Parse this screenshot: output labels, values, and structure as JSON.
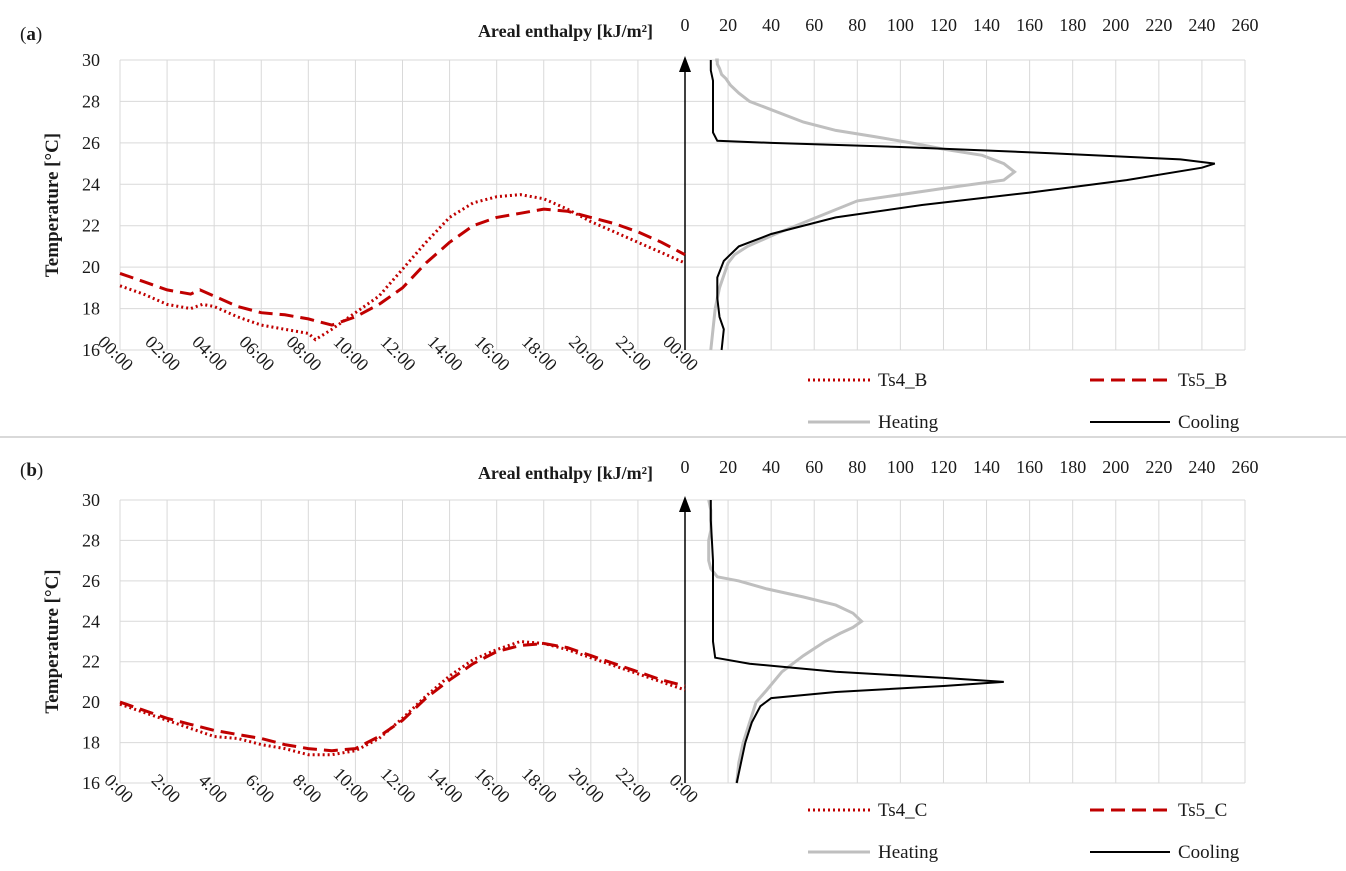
{
  "colors": {
    "ts4": "#c00000",
    "ts5": "#c00000",
    "heating": "#bfbfbf",
    "cooling": "#000000",
    "grid": "#d9d9d9"
  },
  "chart_data": [
    {
      "type": "line",
      "panel_label": "(a)",
      "ylabel": "Temperature [°C]",
      "ylim": [
        16,
        30
      ],
      "yticks": [
        "30",
        "28",
        "26",
        "24",
        "22",
        "20",
        "18",
        "16"
      ],
      "xlabel": "",
      "xticks": [
        "00:00",
        "02:00",
        "04:00",
        "06:00",
        "08:00",
        "10:00",
        "12:00",
        "14:00",
        "16:00",
        "18:00",
        "20:00",
        "22:00",
        "00:00"
      ],
      "grid": true,
      "series": [
        {
          "name": "Ts4_B",
          "style": "dotted",
          "x": [
            0,
            1,
            2,
            3,
            3.5,
            4,
            5,
            6,
            7,
            8,
            8.3,
            9,
            10,
            11,
            12,
            13,
            14,
            15,
            16,
            17,
            18,
            19,
            20,
            21,
            22,
            23,
            24
          ],
          "y": [
            19.1,
            18.7,
            18.2,
            18.0,
            18.2,
            18.1,
            17.6,
            17.2,
            17.0,
            16.8,
            16.5,
            17.0,
            17.8,
            18.6,
            19.9,
            21.2,
            22.4,
            23.1,
            23.4,
            23.5,
            23.3,
            22.8,
            22.2,
            21.7,
            21.2,
            20.7,
            20.2
          ]
        },
        {
          "name": "Ts5_B",
          "style": "dashed",
          "x": [
            0,
            1,
            2,
            3,
            3.4,
            4,
            5,
            6,
            7,
            8,
            9,
            10,
            11,
            12,
            13,
            14,
            15,
            16,
            17,
            18,
            19,
            20,
            21,
            22,
            23,
            24
          ],
          "y": [
            19.7,
            19.3,
            18.9,
            18.7,
            18.9,
            18.6,
            18.1,
            17.8,
            17.7,
            17.5,
            17.2,
            17.6,
            18.2,
            19.0,
            20.2,
            21.2,
            22.0,
            22.4,
            22.6,
            22.8,
            22.7,
            22.4,
            22.1,
            21.7,
            21.2,
            20.6
          ]
        }
      ],
      "enthalpy_axis": {
        "title": "Areal enthalpy [kJ/m²]",
        "xlim": [
          0,
          260
        ],
        "xticks": [
          "0",
          "20",
          "40",
          "60",
          "80",
          "100",
          "120",
          "140",
          "160",
          "180",
          "200",
          "220",
          "240",
          "260"
        ],
        "series": [
          {
            "name": "Heating",
            "x": [
              12,
              13,
              14,
              16,
              18,
              20,
              23,
              29,
              42,
              80,
              120,
              148,
              153,
              148,
              138,
              120,
              105,
              88,
              70,
              55,
              40,
              30,
              25,
              21,
              19,
              17,
              16,
              15,
              15,
              14,
              14,
              14
            ],
            "y": [
              16,
              17,
              18,
              19,
              19.6,
              20.2,
              20.6,
              21,
              21.6,
              23.2,
              23.8,
              24.2,
              24.6,
              25,
              25.4,
              25.7,
              26,
              26.3,
              26.6,
              27,
              27.6,
              28,
              28.4,
              28.8,
              29.1,
              29.3,
              29.6,
              29.8,
              30,
              30,
              30,
              30
            ]
          },
          {
            "name": "Cooling",
            "x": [
              17,
              18,
              16,
              15,
              15,
              18,
              25,
              40,
              70,
              110,
              160,
              205,
              240,
              246,
              230,
              170,
              100,
              40,
              15,
              13,
              13,
              13,
              13,
              12,
              12
            ],
            "y": [
              16,
              17,
              17.6,
              18.5,
              19.5,
              20.3,
              21,
              21.6,
              22.4,
              23,
              23.6,
              24.2,
              24.8,
              25,
              25.2,
              25.5,
              25.8,
              26,
              26.1,
              26.5,
              27,
              28,
              29,
              29.5,
              30
            ]
          }
        ]
      },
      "legend": [
        "Ts4_B",
        "Ts5_B",
        "Heating",
        "Cooling"
      ]
    },
    {
      "type": "line",
      "panel_label": "(b)",
      "ylabel": "Temperature [°C]",
      "ylim": [
        16,
        30
      ],
      "yticks": [
        "30",
        "28",
        "26",
        "24",
        "22",
        "20",
        "18",
        "16"
      ],
      "xlabel": "",
      "xticks": [
        "0:00",
        "2:00",
        "4:00",
        "6:00",
        "8:00",
        "10:00",
        "12:00",
        "14:00",
        "16:00",
        "18:00",
        "20:00",
        "22:00",
        "0:00"
      ],
      "grid": true,
      "series": [
        {
          "name": "Ts4_C",
          "style": "dotted",
          "x": [
            0,
            1,
            2,
            3,
            4,
            5,
            6,
            7,
            8,
            9,
            10,
            11,
            12,
            13,
            14,
            15,
            16,
            17,
            18,
            19,
            20,
            21,
            22,
            23,
            24
          ],
          "y": [
            19.9,
            19.5,
            19.1,
            18.7,
            18.3,
            18.2,
            17.9,
            17.7,
            17.4,
            17.4,
            17.6,
            18.2,
            19.2,
            20.3,
            21.3,
            22.1,
            22.6,
            23.0,
            22.9,
            22.6,
            22.2,
            21.8,
            21.4,
            21.0,
            20.6
          ]
        },
        {
          "name": "Ts5_C",
          "style": "dashed",
          "x": [
            0,
            1,
            2,
            3,
            4,
            5,
            6,
            7,
            8,
            9,
            10,
            11,
            12,
            13,
            14,
            15,
            16,
            17,
            18,
            19,
            20,
            21,
            22,
            23,
            24
          ],
          "y": [
            20.0,
            19.6,
            19.2,
            18.9,
            18.6,
            18.4,
            18.2,
            17.9,
            17.7,
            17.6,
            17.7,
            18.3,
            19.1,
            20.2,
            21.1,
            21.9,
            22.5,
            22.8,
            22.9,
            22.7,
            22.3,
            21.9,
            21.5,
            21.1,
            20.8
          ]
        }
      ],
      "enthalpy_axis": {
        "title": "Areal enthalpy [kJ/m²]",
        "xlim": [
          0,
          260
        ],
        "xticks": [
          "0",
          "20",
          "40",
          "60",
          "80",
          "100",
          "120",
          "140",
          "160",
          "180",
          "200",
          "220",
          "240",
          "260"
        ],
        "series": [
          {
            "name": "Heating",
            "x": [
              24,
              25,
              27,
              30,
              33,
              38,
              45,
              55,
              65,
              72,
              78,
              82,
              78,
              70,
              55,
              38,
              25,
              15,
              12,
              11,
              11,
              12,
              12,
              11
            ],
            "y": [
              16,
              17,
              18,
              19,
              20,
              20.6,
              21.5,
              22.3,
              23,
              23.4,
              23.7,
              24,
              24.4,
              24.8,
              25.2,
              25.6,
              26,
              26.2,
              26.6,
              27,
              28,
              28.5,
              29.5,
              30
            ]
          },
          {
            "name": "Cooling",
            "x": [
              24,
              26,
              28,
              31,
              35,
              40,
              70,
              120,
              148,
              120,
              70,
              30,
              14,
              13,
              13,
              13,
              13,
              12,
              12
            ],
            "y": [
              16,
              17,
              18,
              19,
              19.8,
              20.2,
              20.5,
              20.8,
              21,
              21.2,
              21.5,
              21.9,
              22.2,
              23,
              24,
              25,
              27,
              29,
              30
            ]
          }
        ]
      },
      "legend": [
        "Ts4_C",
        "Ts5_C",
        "Heating",
        "Cooling"
      ]
    }
  ]
}
